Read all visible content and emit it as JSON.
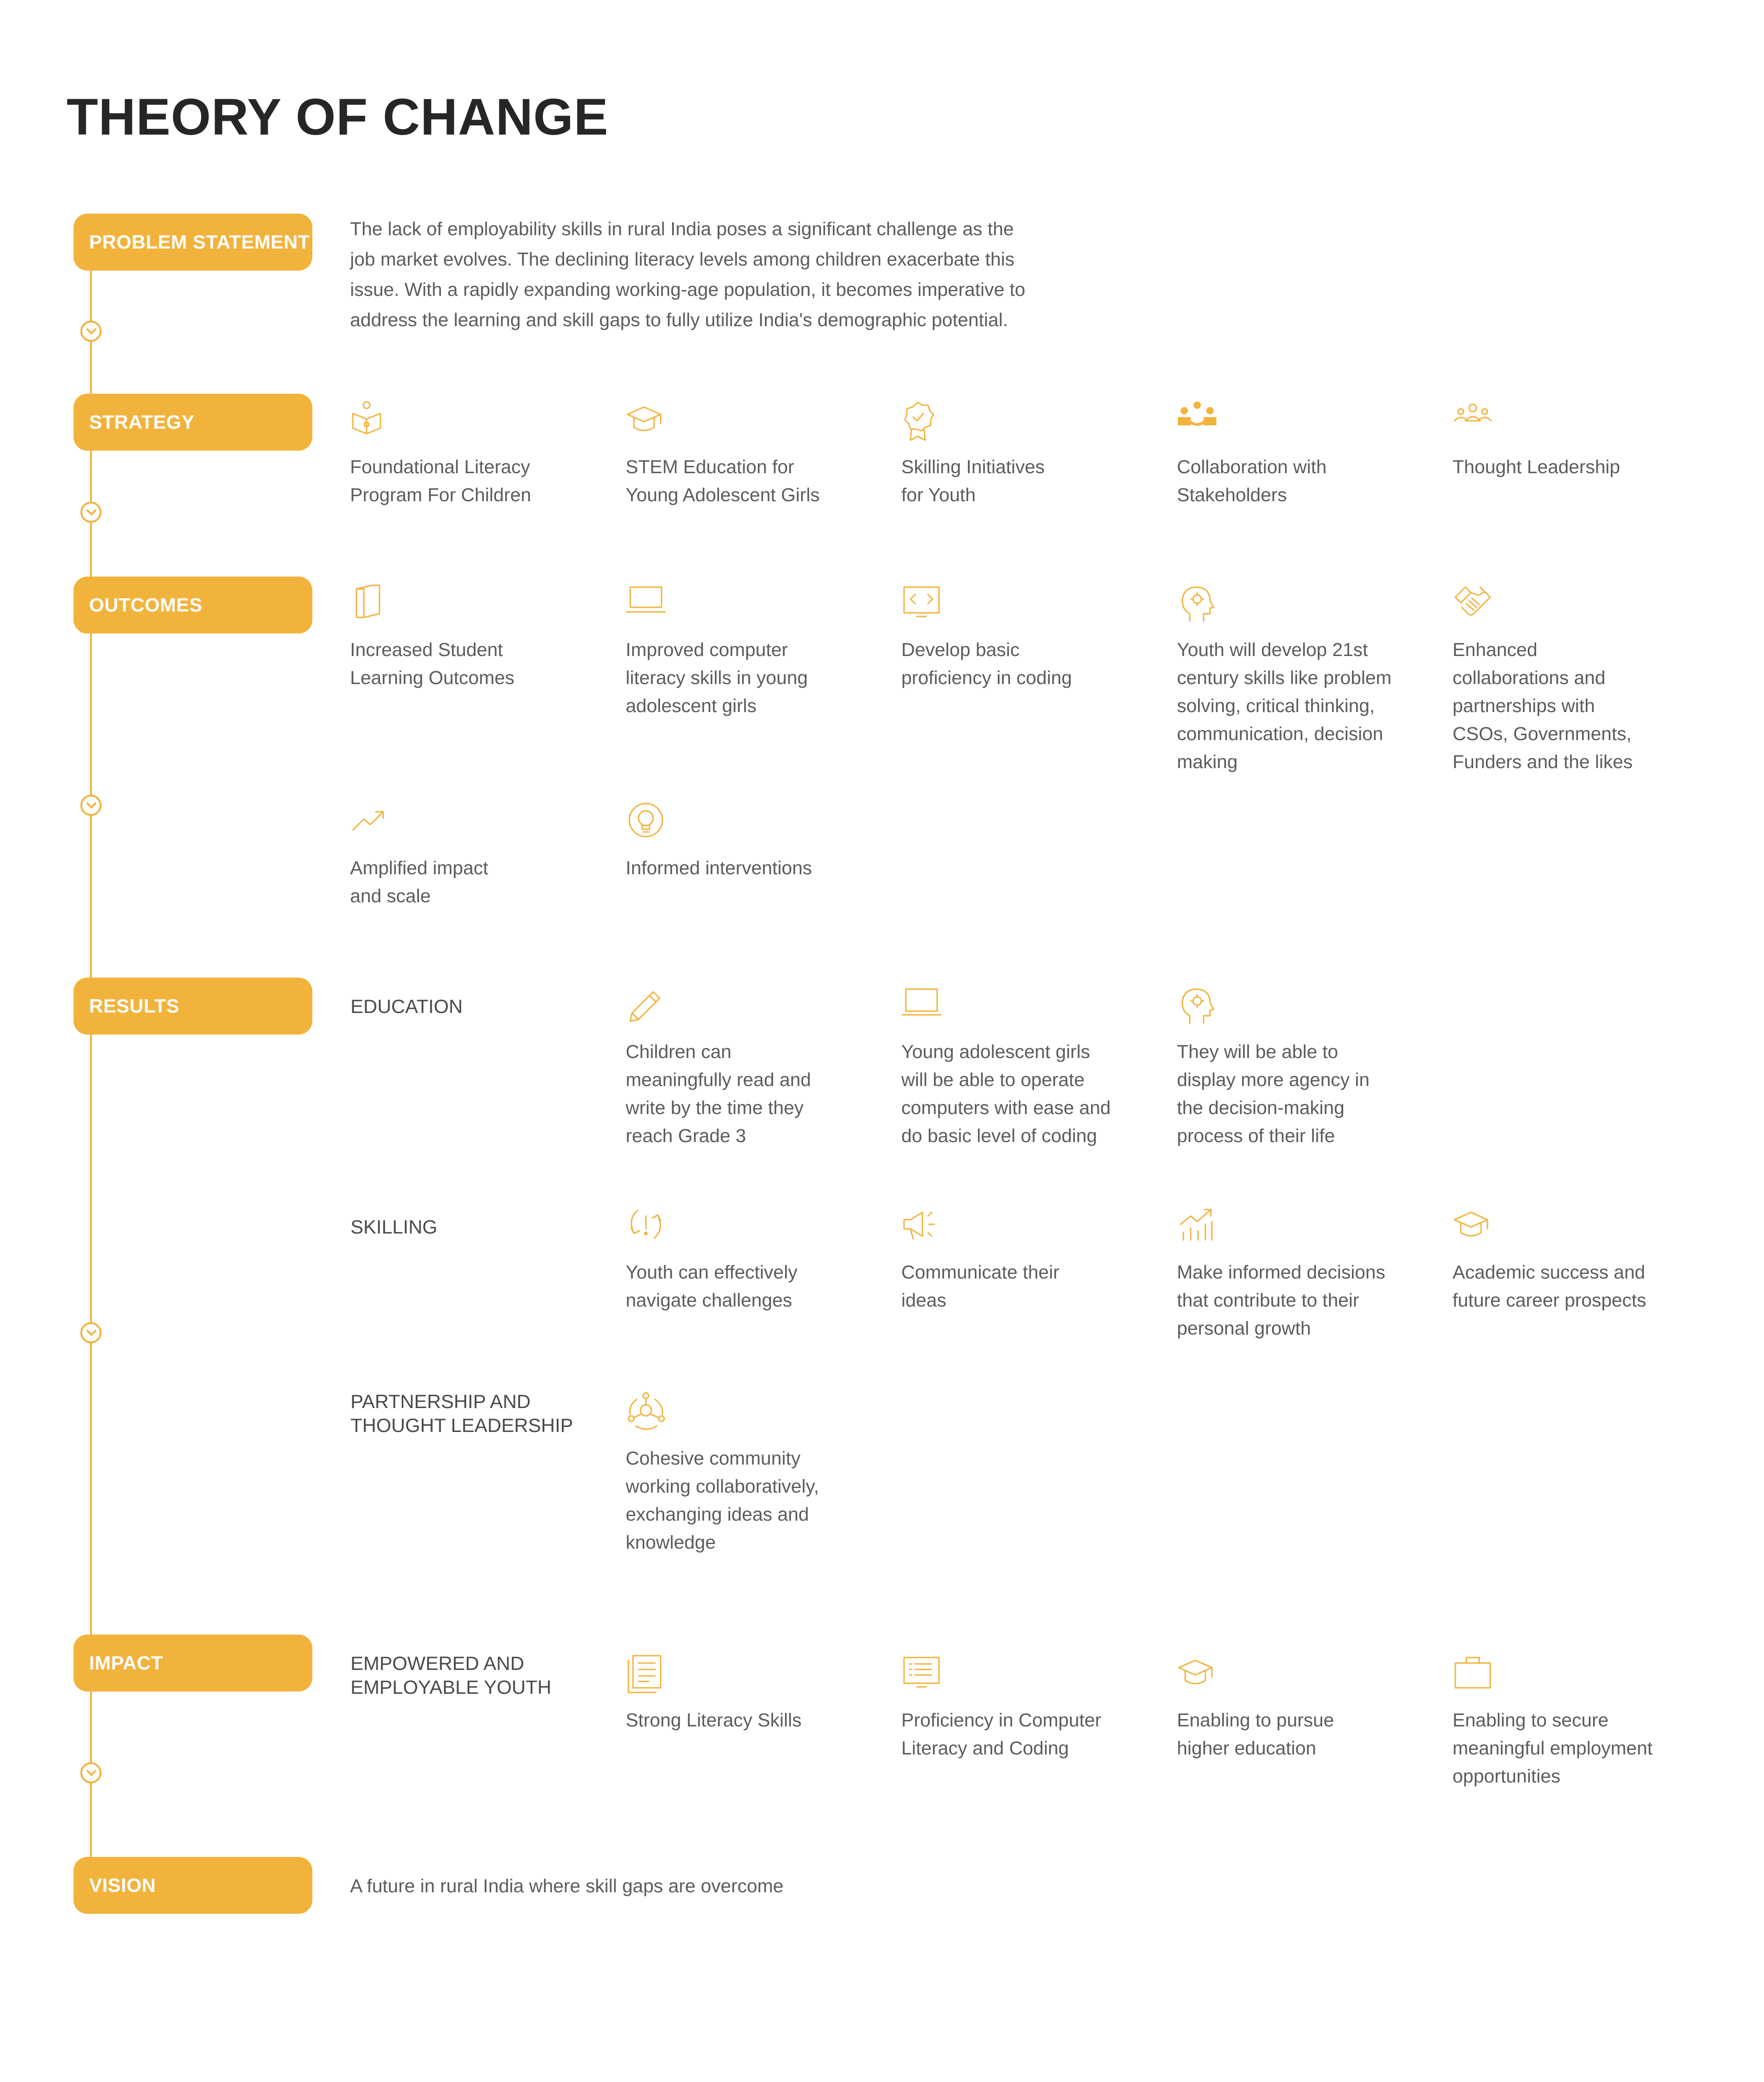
{
  "title": "THEORY OF CHANGE",
  "accent_color": "#f2b33d",
  "stages": {
    "problem": "PROBLEM STATEMENT",
    "strategy": "STRATEGY",
    "outcomes": "OUTCOMES",
    "results": "RESULTS",
    "impact": "IMPACT",
    "vision": "VISION"
  },
  "problem_lines": [
    "The lack of employability skills in rural India poses a significant challenge as the",
    "job market evolves. The declining literacy levels among children exacerbate this",
    "issue. With a rapidly expanding working-age population, it becomes imperative to",
    "address the learning and skill gaps to fully utilize India's demographic potential."
  ],
  "strategy": [
    {
      "icon": "reading-child-icon",
      "lines": [
        "Foundational Literacy",
        "Program For Children"
      ]
    },
    {
      "icon": "graduation-cap-icon",
      "lines": [
        "STEM Education for",
        "Young Adolescent Girls"
      ]
    },
    {
      "icon": "badge-check-icon",
      "lines": [
        "Skilling Initiatives",
        "for Youth"
      ]
    },
    {
      "icon": "group-collaboration-icon",
      "lines": [
        "Collaboration with",
        "Stakeholders"
      ]
    },
    {
      "icon": "people-group-icon",
      "lines": [
        "Thought Leadership"
      ]
    }
  ],
  "outcomes": [
    {
      "icon": "book-icon",
      "lines": [
        "Increased Student",
        "Learning Outcomes"
      ]
    },
    {
      "icon": "laptop-icon",
      "lines": [
        "Improved computer",
        "literacy skills in young",
        "adolescent girls"
      ]
    },
    {
      "icon": "code-screen-icon",
      "lines": [
        "Develop basic",
        "proficiency in coding"
      ]
    },
    {
      "icon": "head-gear-icon",
      "lines": [
        "Youth will develop 21st",
        "century skills like problem",
        "solving, critical thinking,",
        "communication, decision",
        "making"
      ]
    },
    {
      "icon": "handshake-icon",
      "lines": [
        "Enhanced",
        "collaborations and",
        "partnerships with",
        "CSOs, Governments,",
        "Funders and the likes"
      ]
    },
    {
      "icon": "trend-up-icon",
      "lines": [
        "Amplified impact",
        "and scale"
      ]
    },
    {
      "icon": "lightbulb-icon",
      "lines": [
        "Informed interventions"
      ]
    }
  ],
  "results": {
    "education": {
      "label": "EDUCATION",
      "items": [
        {
          "icon": "pencil-icon",
          "lines": [
            "Children can",
            "meaningfully read and",
            "write by the time they",
            "reach Grade 3"
          ]
        },
        {
          "icon": "laptop-icon",
          "lines": [
            "Young adolescent girls",
            "will be able to operate",
            "computers with ease and",
            "do basic level of coding"
          ]
        },
        {
          "icon": "head-gear-icon",
          "lines": [
            "They will be able to",
            "display more agency in",
            "the decision-making",
            "process of their life"
          ]
        }
      ]
    },
    "skilling": {
      "label": "SKILLING",
      "items": [
        {
          "icon": "navigate-arrows-icon",
          "lines": [
            "Youth can effectively",
            "navigate challenges"
          ]
        },
        {
          "icon": "megaphone-icon",
          "lines": [
            "Communicate their",
            "ideas"
          ]
        },
        {
          "icon": "growth-chart-icon",
          "lines": [
            "Make informed decisions",
            "that contribute to their",
            "personal growth"
          ]
        },
        {
          "icon": "graduation-cap-icon",
          "lines": [
            "Academic success and",
            "future career prospects"
          ]
        }
      ]
    },
    "partnership": {
      "label_lines": [
        "PARTNERSHIP AND",
        "THOUGHT LEADERSHIP"
      ],
      "items": [
        {
          "icon": "community-network-icon",
          "lines": [
            "Cohesive community",
            "working collaboratively,",
            "exchanging ideas and",
            "knowledge"
          ]
        }
      ]
    }
  },
  "impact": {
    "label_lines": [
      "EMPOWERED AND",
      "EMPLOYABLE YOUTH"
    ],
    "items": [
      {
        "icon": "document-icon",
        "lines": [
          "Strong Literacy Skills"
        ]
      },
      {
        "icon": "computer-list-icon",
        "lines": [
          "Proficiency in Computer",
          "Literacy and Coding"
        ]
      },
      {
        "icon": "graduation-cap-icon",
        "lines": [
          "Enabling to pursue",
          "higher education"
        ]
      },
      {
        "icon": "briefcase-icon",
        "lines": [
          "Enabling to secure",
          "meaningful employment",
          "opportunities"
        ]
      }
    ]
  },
  "vision_text": "A future in rural India where skill gaps are overcome"
}
